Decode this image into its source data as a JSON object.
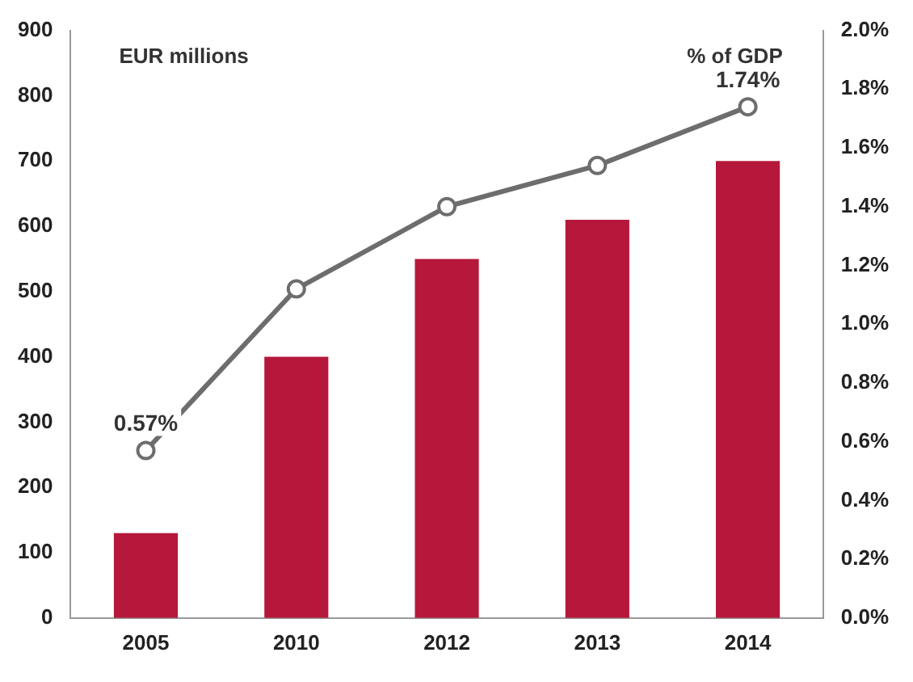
{
  "chart_data": {
    "type": "bar",
    "ylabel": "EUR millions",
    "y2label": "% of GDP",
    "categories": [
      "2005",
      "2010",
      "2012",
      "2013",
      "2014"
    ],
    "series": [
      {
        "color": "#b5183a",
        "values": [
          130,
          400,
          550,
          610,
          700
        ]
      },
      {
        "type": "line",
        "axis": "y2",
        "color": "#6d6d6d",
        "marker": "circle",
        "values": [
          0.57,
          1.12,
          1.4,
          1.54,
          1.74
        ],
        "value_labels": [
          "0.57%",
          null,
          null,
          null,
          "1.74%"
        ]
      }
    ],
    "ylim": [
      0,
      900
    ],
    "yticks": [
      0,
      100,
      200,
      300,
      400,
      500,
      600,
      700,
      800,
      900
    ],
    "y2lim": [
      0,
      2
    ],
    "y2ticks": [
      {
        "value": 0,
        "label": "0.0%"
      },
      {
        "value": 0.2,
        "label": "0.2%"
      },
      {
        "value": 0.4,
        "label": "0.4%"
      },
      {
        "value": 0.6,
        "label": "0.6%"
      },
      {
        "value": 0.8,
        "label": "0.8%"
      },
      {
        "value": 1,
        "label": "1.0%"
      },
      {
        "value": 1.2,
        "label": "1.2%"
      },
      {
        "value": 1.4,
        "label": "1.4%"
      },
      {
        "value": 1.6,
        "label": "1.6%"
      },
      {
        "value": 1.8,
        "label": "1.8%"
      },
      {
        "value": 2,
        "label": "2.0%"
      }
    ],
    "grid": false,
    "legend": false
  }
}
